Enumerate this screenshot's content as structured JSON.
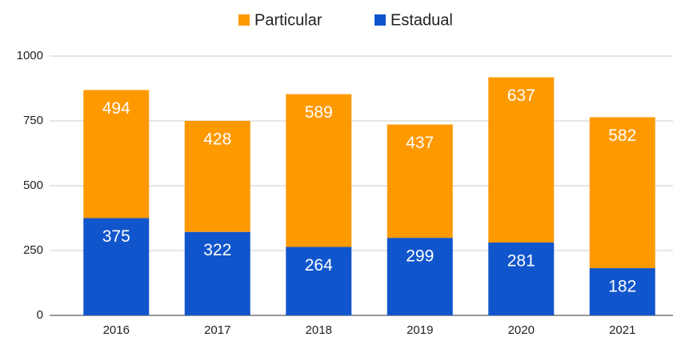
{
  "chart_data": {
    "type": "stacked_bar",
    "categories": [
      "2016",
      "2017",
      "2018",
      "2019",
      "2020",
      "2021"
    ],
    "series": [
      {
        "name": "Particular",
        "color": "#ff9900",
        "values": [
          494,
          428,
          589,
          437,
          637,
          582
        ]
      },
      {
        "name": "Estadual",
        "color": "#1155cc",
        "values": [
          375,
          322,
          264,
          299,
          281,
          182
        ]
      }
    ],
    "ylim": [
      0,
      1000
    ],
    "yticks": [
      0,
      250,
      500,
      750,
      1000
    ],
    "grid": true,
    "legend": "top"
  }
}
